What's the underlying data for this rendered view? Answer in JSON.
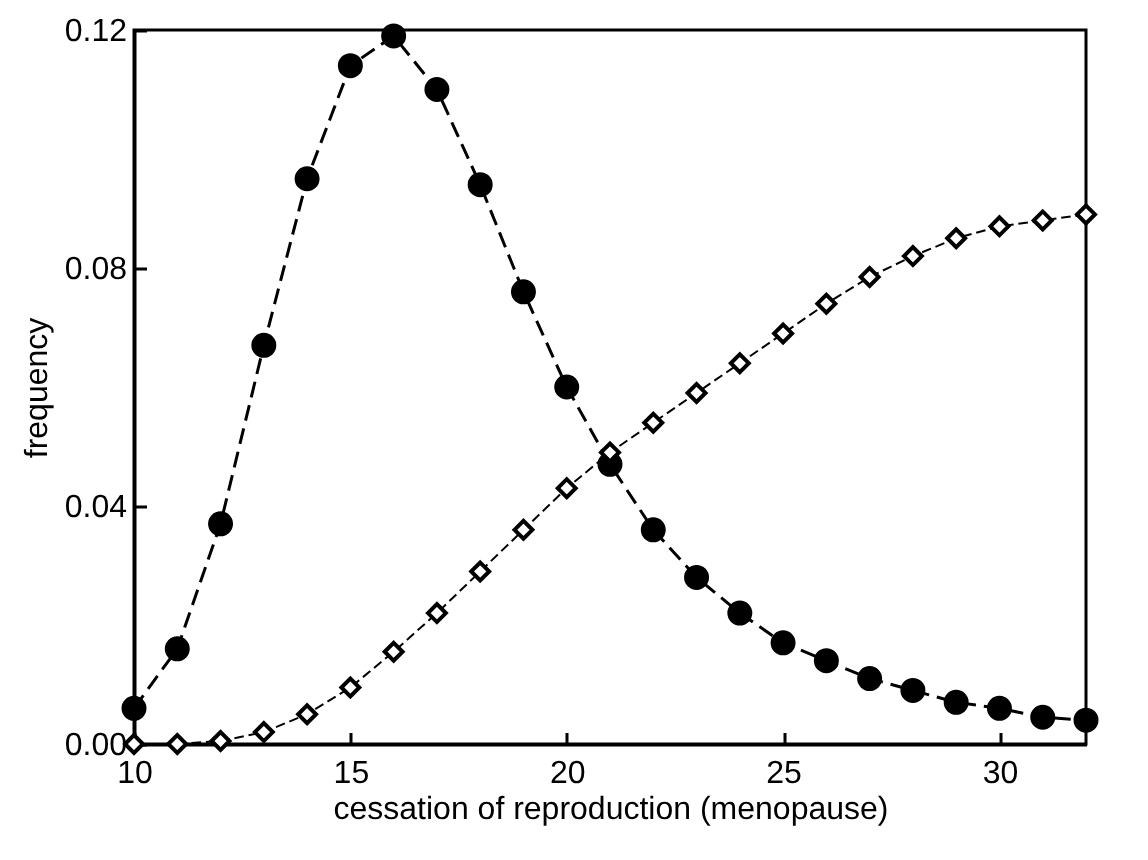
{
  "chart_data": {
    "type": "line",
    "xlabel": "cessation of reproduction (menopause)",
    "ylabel": "frequency",
    "x": [
      10,
      11,
      12,
      13,
      14,
      15,
      16,
      17,
      18,
      19,
      20,
      21,
      22,
      23,
      24,
      25,
      26,
      27,
      28,
      29,
      30,
      31,
      32
    ],
    "series": [
      {
        "color": "#000000",
        "marker": "circle",
        "line_style": "dashed",
        "values": [
          0.006,
          0.016,
          0.037,
          0.067,
          0.095,
          0.114,
          0.119,
          0.11,
          0.094,
          0.076,
          0.06,
          0.047,
          0.036,
          0.028,
          0.022,
          0.017,
          0.014,
          0.011,
          0.009,
          0.007,
          0.006,
          0.0045,
          0.004
        ]
      },
      {
        "color": "#000000",
        "marker": "diamond",
        "line_style": "dashed",
        "values": [
          0.0,
          0.0,
          0.0005,
          0.002,
          0.005,
          0.0095,
          0.0155,
          0.022,
          0.029,
          0.036,
          0.043,
          0.049,
          0.054,
          0.059,
          0.064,
          0.069,
          0.074,
          0.0785,
          0.082,
          0.085,
          0.087,
          0.088,
          0.089
        ]
      }
    ],
    "xlim": [
      10,
      32
    ],
    "xticks": [
      10,
      15,
      20,
      25,
      30
    ],
    "ylim": [
      0,
      0.12
    ],
    "yticks": [
      {
        "value": 0,
        "label": "0.00"
      },
      {
        "value": 0.04,
        "label": "0.04"
      },
      {
        "value": 0.08,
        "label": "0.08"
      },
      {
        "value": 0.12,
        "label": "0.12"
      }
    ],
    "grid": false
  }
}
